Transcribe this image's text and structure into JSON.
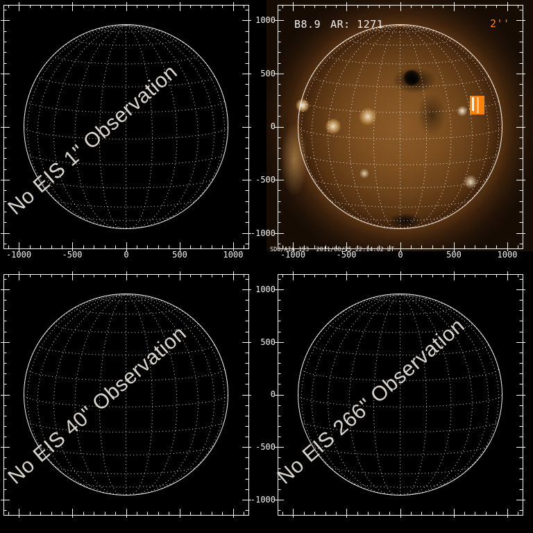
{
  "colors": {
    "background": "#000000",
    "frame": "#ffffff",
    "grid_dot": "#ffffff",
    "watermark": "#d9d5cd",
    "annotation_white": "#f2f2f2",
    "accent_orange": "#f8831d",
    "disk_sepia": "#8a5a28"
  },
  "panels": {
    "top_left": {
      "watermark": "No EIS 1\" Observation",
      "x_tick_labels": [
        "-1000",
        "-500",
        "0",
        "500",
        "1000"
      ]
    },
    "top_right": {
      "flare_class": "B8.9",
      "active_region": "AR: 1271",
      "slit_width": "2''",
      "credit": "SDO/AIA 193  2011/08/25 22:14:02 UT",
      "x_tick_labels": [
        "-1000",
        "-500",
        "0",
        "500",
        "1000"
      ],
      "y_tick_labels": [
        "1000",
        "500",
        "0",
        "-500",
        "-1000"
      ]
    },
    "bottom_left": {
      "watermark": "No EIS 40\" Observation"
    },
    "bottom_right": {
      "watermark": "No EIS 266\" Observation",
      "y_tick_labels": [
        "1000",
        "500",
        "0",
        "-500",
        "-1000"
      ]
    }
  }
}
